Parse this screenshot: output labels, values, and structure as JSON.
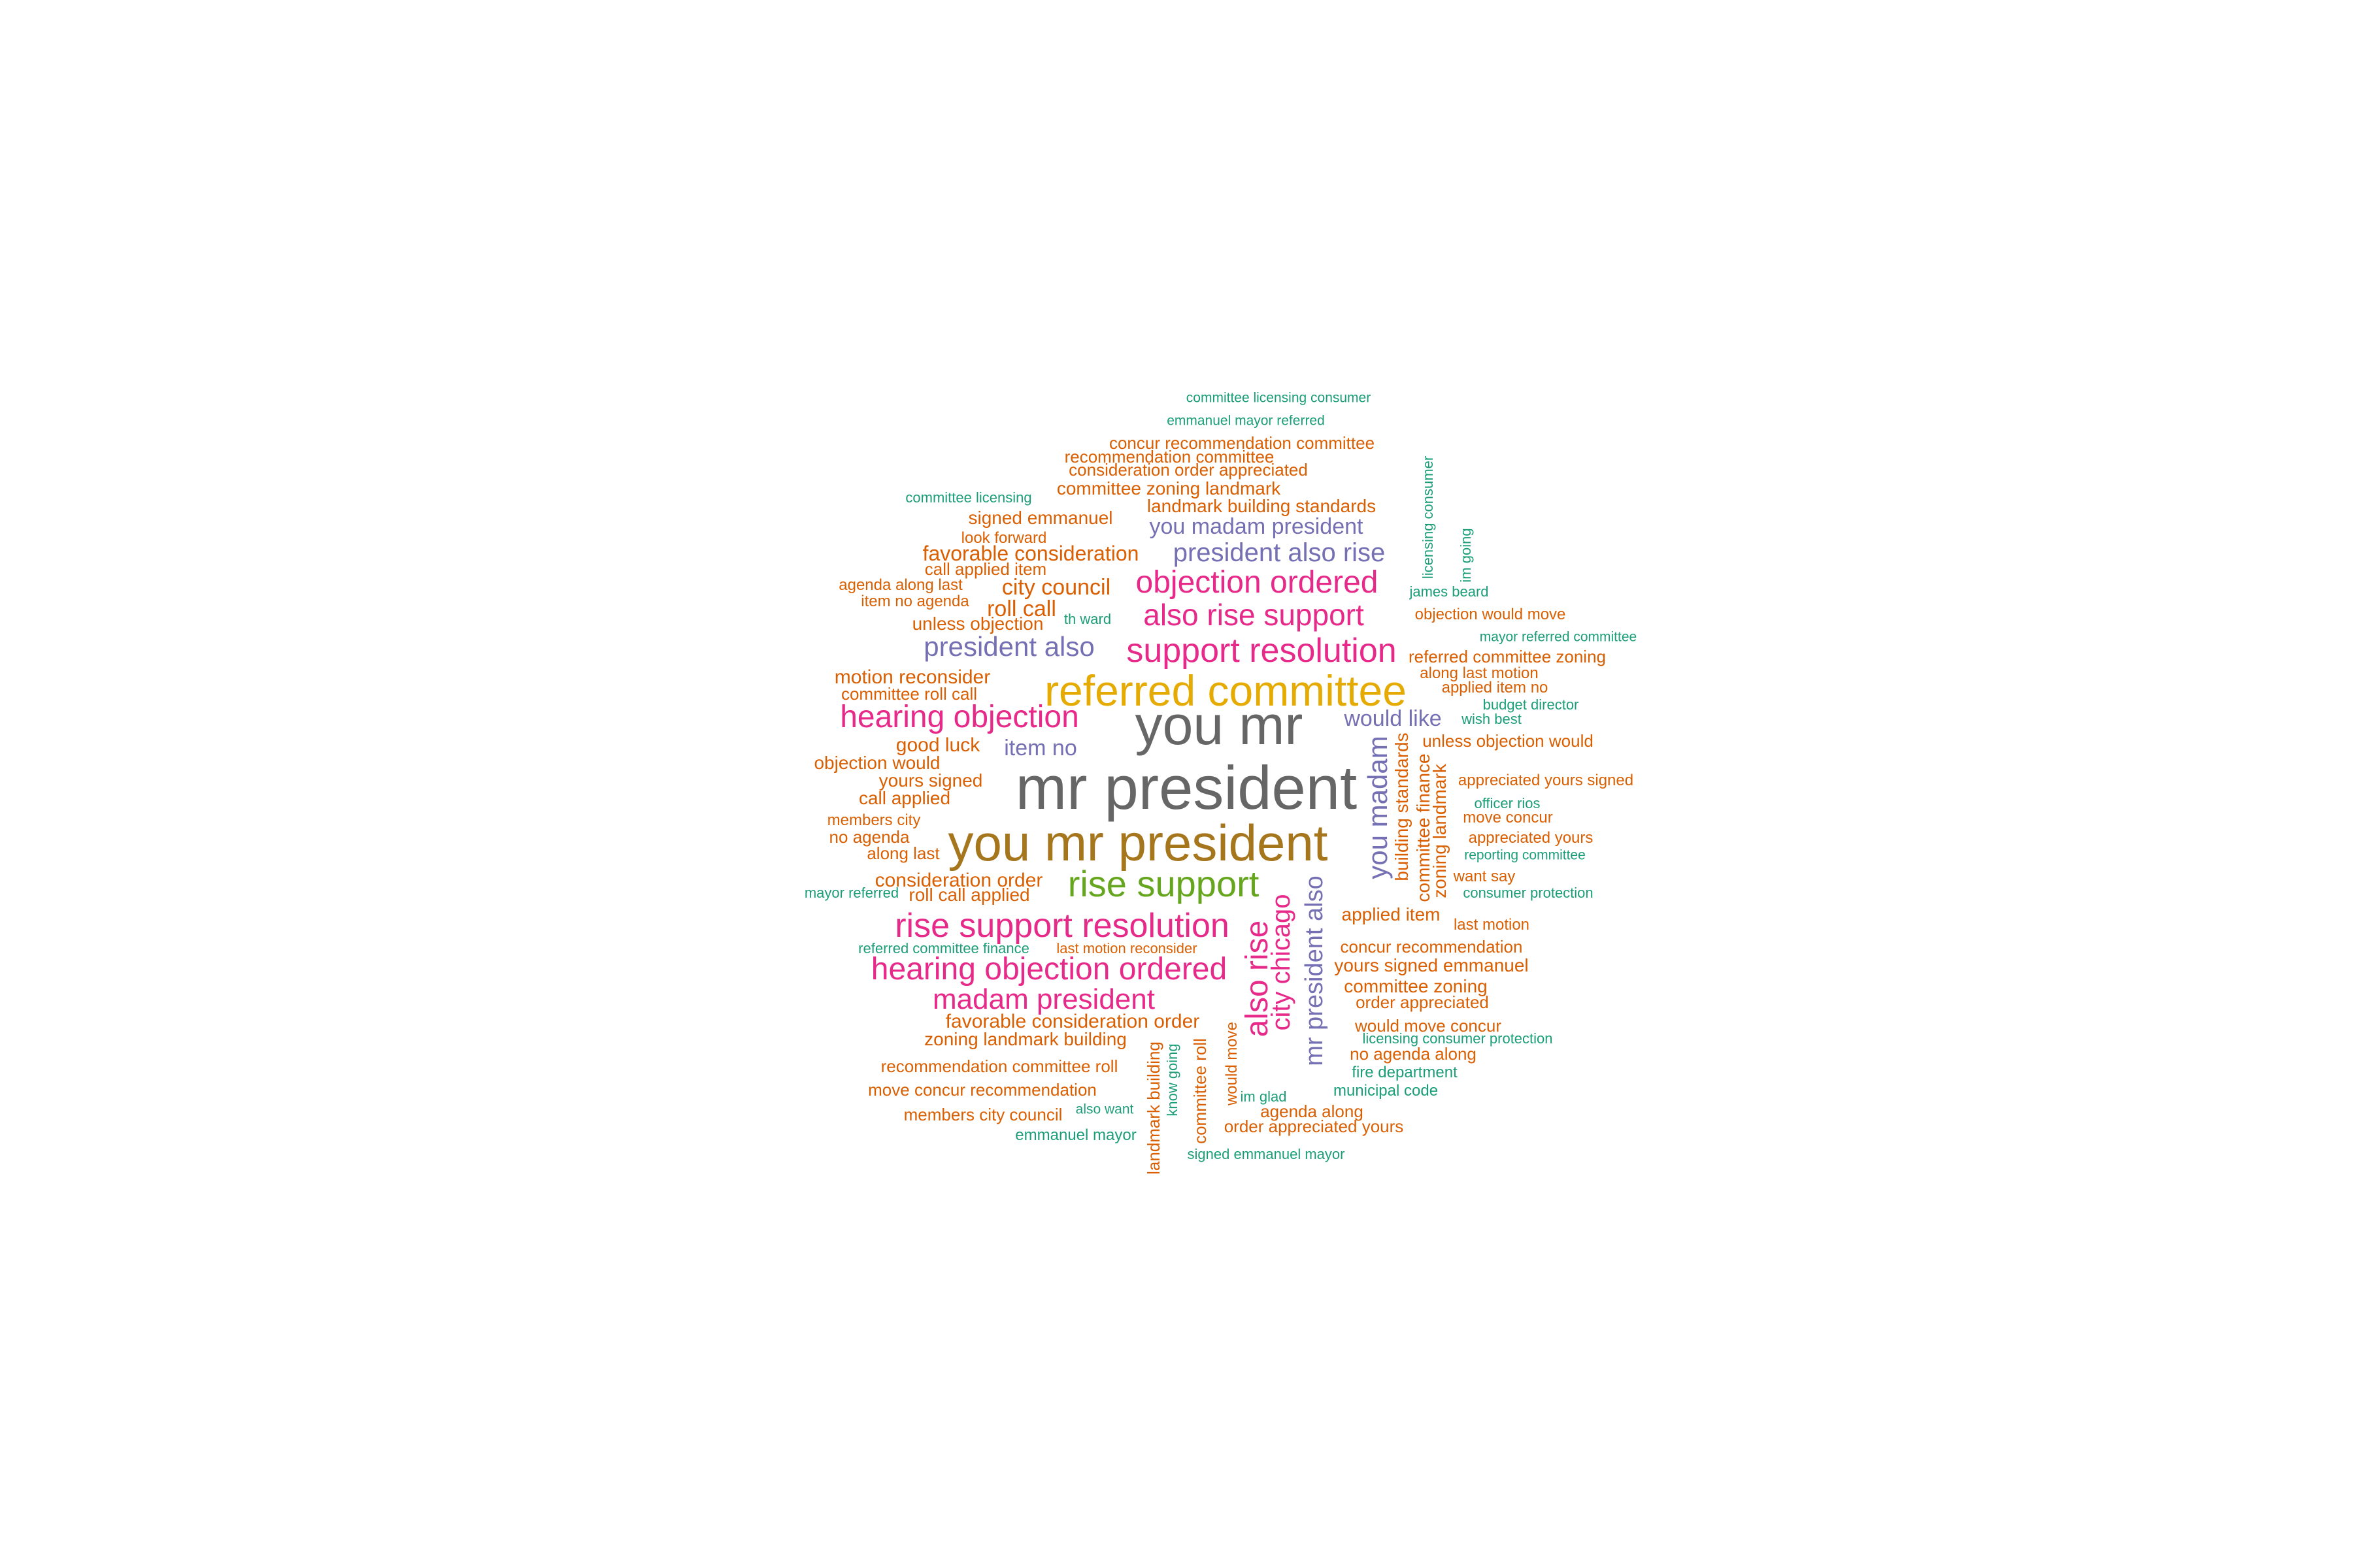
{
  "palette": {
    "c1": "#1b9e77",
    "c2": "#d95f02",
    "c3": "#7570b3",
    "c4": "#e7298a",
    "c5": "#66a61e",
    "c6": "#e6ab02",
    "c7": "#a6761d",
    "c8": "#666666"
  },
  "words": [
    {
      "text": "mr president",
      "color": "#666666"
    },
    {
      "text": "you mr",
      "color": "#666666"
    },
    {
      "text": "you mr president",
      "color": "#a6761d"
    },
    {
      "text": "referred committee",
      "color": "#e6ab02"
    },
    {
      "text": "rise support",
      "color": "#66a61e"
    },
    {
      "text": "rise support resolution",
      "color": "#e7298a"
    },
    {
      "text": "hearing objection ordered",
      "color": "#e7298a"
    },
    {
      "text": "support resolution",
      "color": "#e7298a"
    },
    {
      "text": "hearing objection",
      "color": "#e7298a"
    },
    {
      "text": "objection ordered",
      "color": "#e7298a"
    },
    {
      "text": "also rise support",
      "color": "#e7298a"
    },
    {
      "text": "madam president",
      "color": "#e7298a"
    },
    {
      "text": "president also",
      "color": "#7570b3"
    },
    {
      "text": "president also rise",
      "color": "#7570b3"
    },
    {
      "text": "you madam president",
      "color": "#7570b3"
    },
    {
      "text": "would like",
      "color": "#7570b3"
    },
    {
      "text": "item no",
      "color": "#7570b3"
    },
    {
      "text": "committee licensing consumer",
      "color": "#1b9e77"
    },
    {
      "text": "emmanuel mayor referred",
      "color": "#1b9e77"
    },
    {
      "text": "concur recommendation committee",
      "color": "#d95f02"
    },
    {
      "text": "recommendation committee",
      "color": "#d95f02"
    },
    {
      "text": "consideration order appreciated",
      "color": "#d95f02"
    },
    {
      "text": "committee zoning landmark",
      "color": "#d95f02"
    },
    {
      "text": "committee licensing",
      "color": "#1b9e77"
    },
    {
      "text": "landmark building standards",
      "color": "#d95f02"
    },
    {
      "text": "signed emmanuel",
      "color": "#d95f02"
    },
    {
      "text": "look forward",
      "color": "#d95f02"
    },
    {
      "text": "favorable consideration",
      "color": "#d95f02"
    },
    {
      "text": "call applied item",
      "color": "#d95f02"
    },
    {
      "text": "city council",
      "color": "#d95f02"
    },
    {
      "text": "agenda along last",
      "color": "#d95f02"
    },
    {
      "text": "item no agenda",
      "color": "#d95f02"
    },
    {
      "text": "roll call",
      "color": "#d95f02"
    },
    {
      "text": "unless objection",
      "color": "#d95f02"
    },
    {
      "text": "th ward",
      "color": "#1b9e77"
    },
    {
      "text": "james beard",
      "color": "#1b9e77"
    },
    {
      "text": "objection would move",
      "color": "#d95f02"
    },
    {
      "text": "mayor referred committee",
      "color": "#1b9e77"
    },
    {
      "text": "referred committee zoning",
      "color": "#d95f02"
    },
    {
      "text": "along last motion",
      "color": "#d95f02"
    },
    {
      "text": "applied item no",
      "color": "#d95f02"
    },
    {
      "text": "budget director",
      "color": "#1b9e77"
    },
    {
      "text": "wish best",
      "color": "#1b9e77"
    },
    {
      "text": "unless objection would",
      "color": "#d95f02"
    },
    {
      "text": "motion reconsider",
      "color": "#d95f02"
    },
    {
      "text": "committee roll call",
      "color": "#d95f02"
    },
    {
      "text": "good luck",
      "color": "#d95f02"
    },
    {
      "text": "objection would",
      "color": "#d95f02"
    },
    {
      "text": "yours signed",
      "color": "#d95f02"
    },
    {
      "text": "call applied",
      "color": "#d95f02"
    },
    {
      "text": "members city",
      "color": "#d95f02"
    },
    {
      "text": "no agenda",
      "color": "#d95f02"
    },
    {
      "text": "along last",
      "color": "#d95f02"
    },
    {
      "text": "appreciated yours signed",
      "color": "#d95f02"
    },
    {
      "text": "officer rios",
      "color": "#1b9e77"
    },
    {
      "text": "move concur",
      "color": "#d95f02"
    },
    {
      "text": "appreciated yours",
      "color": "#d95f02"
    },
    {
      "text": "reporting committee",
      "color": "#1b9e77"
    },
    {
      "text": "want say",
      "color": "#d95f02"
    },
    {
      "text": "consumer protection",
      "color": "#1b9e77"
    },
    {
      "text": "consideration order",
      "color": "#d95f02"
    },
    {
      "text": "mayor referred",
      "color": "#1b9e77"
    },
    {
      "text": "roll call applied",
      "color": "#d95f02"
    },
    {
      "text": "applied item",
      "color": "#d95f02"
    },
    {
      "text": "last motion",
      "color": "#d95f02"
    },
    {
      "text": "referred committee finance",
      "color": "#1b9e77"
    },
    {
      "text": "last motion reconsider",
      "color": "#d95f02"
    },
    {
      "text": "concur recommendation",
      "color": "#d95f02"
    },
    {
      "text": "yours signed emmanuel",
      "color": "#d95f02"
    },
    {
      "text": "committee zoning",
      "color": "#d95f02"
    },
    {
      "text": "order appreciated",
      "color": "#d95f02"
    },
    {
      "text": "favorable consideration order",
      "color": "#d95f02"
    },
    {
      "text": "zoning landmark building",
      "color": "#d95f02"
    },
    {
      "text": "would move concur",
      "color": "#d95f02"
    },
    {
      "text": "licensing consumer protection",
      "color": "#1b9e77"
    },
    {
      "text": "no agenda along",
      "color": "#d95f02"
    },
    {
      "text": "recommendation committee roll",
      "color": "#d95f02"
    },
    {
      "text": "fire department",
      "color": "#1b9e77"
    },
    {
      "text": "move concur recommendation",
      "color": "#d95f02"
    },
    {
      "text": "municipal code",
      "color": "#1b9e77"
    },
    {
      "text": "im glad",
      "color": "#1b9e77"
    },
    {
      "text": "also want",
      "color": "#1b9e77"
    },
    {
      "text": "agenda along",
      "color": "#d95f02"
    },
    {
      "text": "members city council",
      "color": "#d95f02"
    },
    {
      "text": "order appreciated yours",
      "color": "#d95f02"
    },
    {
      "text": "emmanuel mayor",
      "color": "#1b9e77"
    },
    {
      "text": "signed emmanuel mayor",
      "color": "#1b9e77"
    },
    {
      "text": "licensing consumer",
      "color": "#1b9e77"
    },
    {
      "text": "im going",
      "color": "#1b9e77"
    },
    {
      "text": "you madam",
      "color": "#7570b3"
    },
    {
      "text": "building standards",
      "color": "#d95f02"
    },
    {
      "text": "committee finance",
      "color": "#d95f02"
    },
    {
      "text": "zoning landmark",
      "color": "#d95f02"
    },
    {
      "text": "mr president also",
      "color": "#7570b3"
    },
    {
      "text": "city chicago",
      "color": "#e7298a"
    },
    {
      "text": "also rise",
      "color": "#e7298a"
    },
    {
      "text": "would move",
      "color": "#d95f02"
    },
    {
      "text": "committee roll",
      "color": "#d95f02"
    },
    {
      "text": "know going",
      "color": "#1b9e77"
    },
    {
      "text": "landmark building",
      "color": "#d95f02"
    }
  ]
}
